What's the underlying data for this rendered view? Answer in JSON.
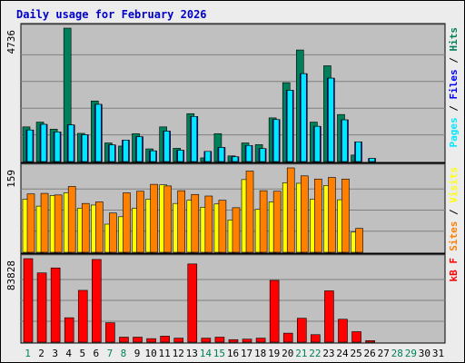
{
  "chart_data": {
    "type": "bar",
    "title": "Daily usage for February 2026",
    "x": [
      "1",
      "2",
      "3",
      "4",
      "5",
      "6",
      "7",
      "8",
      "9",
      "10",
      "11",
      "12",
      "13",
      "14",
      "15",
      "16",
      "17",
      "18",
      "19",
      "20",
      "21",
      "22",
      "23",
      "24",
      "25",
      "26",
      "27",
      "28",
      "29",
      "30",
      "31"
    ],
    "weekend_days": [
      "1",
      "7",
      "8",
      "14",
      "15",
      "21",
      "22",
      "28",
      "29"
    ],
    "panels": [
      {
        "id": "hits-files-pages",
        "ymax_label": "4736",
        "ymax": 4736,
        "series": [
          {
            "name": "Hits",
            "color": "#00805a",
            "values": [
              1230,
              1400,
              1150,
              4736,
              1000,
              2150,
              660,
              550,
              990,
              450,
              1230,
              470,
              1700,
              130,
              990,
              200,
              660,
              600,
              1550,
              2800,
              3960,
              1400,
              3400,
              1670,
              230,
              0,
              0,
              0,
              0,
              0,
              0
            ]
          },
          {
            "name": "Files",
            "color": "#0000ff",
            "values": [
              1120,
              1320,
              1050,
              1300,
              950,
              2030,
              590,
              760,
              880,
              380,
              1080,
              400,
              1600,
              360,
              500,
              170,
              570,
              460,
              1490,
              2530,
              3120,
              1250,
              2960,
              1480,
              700,
              110,
              0,
              0,
              0,
              0,
              0
            ]
          },
          {
            "name": "Pages",
            "color": "#00e8ff",
            "values": [
              1120,
              1320,
              1050,
              1300,
              950,
              2030,
              590,
              760,
              880,
              380,
              1080,
              400,
              1600,
              360,
              500,
              170,
              570,
              460,
              1490,
              2530,
              3120,
              1250,
              2960,
              1480,
              700,
              110,
              0,
              0,
              0,
              0,
              0
            ]
          }
        ]
      },
      {
        "id": "visits-sites",
        "ymax_label": "159",
        "ymax": 159,
        "series": [
          {
            "name": "Visits",
            "color": "#ffff00",
            "values": [
              100,
              87,
              107,
              112,
              83,
              89,
              53,
              67,
              83,
              100,
              127,
              92,
              98,
              85,
              91,
              61,
              137,
              81,
              95,
              131,
              130,
              100,
              126,
              99,
              38,
              0,
              0,
              0,
              0,
              0,
              0
            ]
          },
          {
            "name": "Sites",
            "color": "#ff8000",
            "values": [
              110,
              111,
              108,
              124,
              92,
              95,
              74,
              112,
              115,
              128,
              125,
              116,
              109,
              106,
              98,
              84,
              153,
              116,
              115,
              159,
              144,
              138,
              141,
              138,
              45,
              0,
              0,
              0,
              0,
              0,
              0
            ]
          }
        ]
      },
      {
        "id": "kbytes",
        "ymax_label": "83828",
        "ymax": 83828,
        "series": [
          {
            "name": "KBytes",
            "color": "#ff0000",
            "values": [
              83828,
              69500,
              74500,
              24500,
              52000,
              83000,
              19500,
              5000,
              5000,
              3500,
              6000,
              4000,
              78500,
              4000,
              5000,
              2500,
              3000,
              4000,
              62000,
              9000,
              24000,
              7500,
              51500,
              23000,
              10500,
              1500,
              0,
              0,
              0,
              0,
              0
            ]
          }
        ]
      }
    ],
    "side_labels": [
      {
        "panel": "hits-files-pages",
        "parts": [
          {
            "text": "Pages",
            "color": "#00e8ff"
          },
          {
            "text": " / ",
            "color": "#000000"
          },
          {
            "text": "Files",
            "color": "#0000ff"
          },
          {
            "text": " / ",
            "color": "#000000"
          },
          {
            "text": "Hits",
            "color": "#00805a"
          }
        ]
      },
      {
        "panel": "visits-sites",
        "parts": [
          {
            "text": "Sites",
            "color": "#ff8000"
          },
          {
            "text": " / ",
            "color": "#000000"
          },
          {
            "text": "Visits",
            "color": "#ffff00"
          }
        ]
      },
      {
        "panel": "kbytes",
        "parts": [
          {
            "text": "kB F",
            "color": "#ff0000"
          }
        ]
      }
    ],
    "colors": {
      "background": "#c0c0c0",
      "page": "#ececec",
      "gridline": "#808080",
      "tick_weekday": "#000000",
      "tick_weekend": "#00805a"
    },
    "grid": true
  }
}
